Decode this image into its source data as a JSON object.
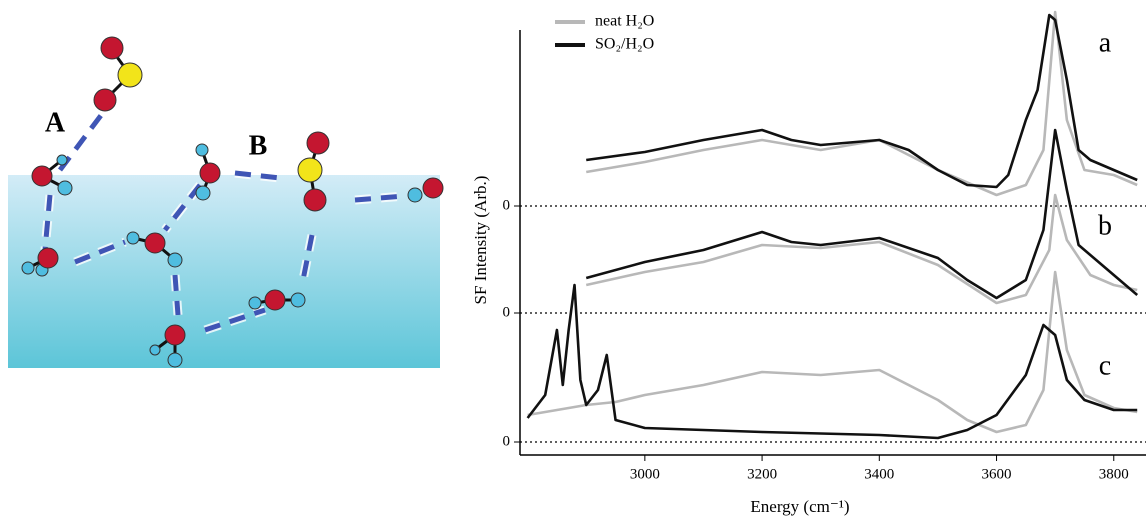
{
  "diagram": {
    "labels": [
      "A",
      "B"
    ]
  },
  "chart_data": {
    "type": "line",
    "xlabel": "Energy (cm⁻¹)",
    "ylabel": "SF Intensity (Arb.)",
    "xlim": [
      2787,
      3855
    ],
    "xticks": [
      3000,
      3200,
      3400,
      3600,
      3800
    ],
    "ylim": [
      -0.13,
      4.32
    ],
    "yticks": [
      {
        "value": 0,
        "label": "0"
      },
      {
        "value": 1.29,
        "label": "0"
      },
      {
        "value": 2.36,
        "label": "0"
      }
    ],
    "grid": true,
    "panels": [
      {
        "label": "a",
        "series": [
          {
            "name": "neat H₂O",
            "color": "#b8b8b8",
            "x": [
              2900,
              3000,
              3100,
              3200,
              3300,
              3400,
              3500,
              3600,
              3650,
              3680,
              3700,
              3720,
              3750,
              3800,
              3840
            ],
            "values": [
              2.7,
              2.8,
              2.92,
              3.02,
              2.92,
              3.02,
              2.72,
              2.47,
              2.57,
              2.92,
              4.3,
              3.22,
              2.72,
              2.67,
              2.57
            ]
          },
          {
            "name": "SO₂/H₂O",
            "color": "#111111",
            "x": [
              2900,
              3000,
              3100,
              3200,
              3250,
              3300,
              3400,
              3450,
              3500,
              3550,
              3600,
              3620,
              3650,
              3670,
              3690,
              3700,
              3720,
              3740,
              3760,
              3800,
              3840
            ],
            "values": [
              2.82,
              2.9,
              3.02,
              3.12,
              3.02,
              2.97,
              3.02,
              2.92,
              2.72,
              2.57,
              2.55,
              2.67,
              3.22,
              3.52,
              4.27,
              4.22,
              3.62,
              2.92,
              2.82,
              2.72,
              2.62
            ]
          }
        ]
      },
      {
        "label": "b",
        "series": [
          {
            "color": "#b8b8b8",
            "x": [
              2900,
              3000,
              3100,
              3200,
              3300,
              3400,
              3500,
              3600,
              3650,
              3690,
              3700,
              3720,
              3760,
              3800,
              3840
            ],
            "values": [
              1.57,
              1.7,
              1.8,
              1.97,
              1.94,
              2.0,
              1.77,
              1.39,
              1.47,
              1.92,
              2.47,
              2.02,
              1.67,
              1.57,
              1.52
            ]
          },
          {
            "color": "#111111",
            "x": [
              2900,
              3000,
              3100,
              3200,
              3250,
              3300,
              3400,
              3500,
              3550,
              3600,
              3650,
              3680,
              3700,
              3720,
              3740,
              3800,
              3840
            ],
            "values": [
              1.64,
              1.8,
              1.92,
              2.1,
              2.0,
              1.97,
              2.04,
              1.84,
              1.62,
              1.44,
              1.62,
              2.12,
              3.12,
              2.52,
              1.97,
              1.67,
              1.47
            ]
          }
        ]
      },
      {
        "label": "c",
        "series": [
          {
            "color": "#b8b8b8",
            "x": [
              2800,
              2850,
              2900,
              2950,
              3000,
              3100,
              3200,
              3300,
              3400,
              3500,
              3550,
              3600,
              3650,
              3680,
              3700,
              3720,
              3750,
              3800,
              3840
            ],
            "values": [
              0.27,
              0.32,
              0.37,
              0.4,
              0.47,
              0.57,
              0.7,
              0.67,
              0.72,
              0.42,
              0.22,
              0.1,
              0.17,
              0.52,
              1.7,
              0.92,
              0.47,
              0.34,
              0.3
            ]
          },
          {
            "color": "#111111",
            "x": [
              2800,
              2830,
              2850,
              2860,
              2870,
              2880,
              2890,
              2900,
              2920,
              2935,
              2950,
              3000,
              3200,
              3400,
              3500,
              3550,
              3600,
              3650,
              3680,
              3700,
              3720,
              3750,
              3800,
              3840
            ],
            "values": [
              0.24,
              0.47,
              1.12,
              0.57,
              1.12,
              1.57,
              0.62,
              0.37,
              0.52,
              0.87,
              0.22,
              0.14,
              0.1,
              0.07,
              0.04,
              0.12,
              0.27,
              0.67,
              1.17,
              1.07,
              0.62,
              0.42,
              0.32,
              0.32
            ]
          }
        ]
      }
    ]
  }
}
